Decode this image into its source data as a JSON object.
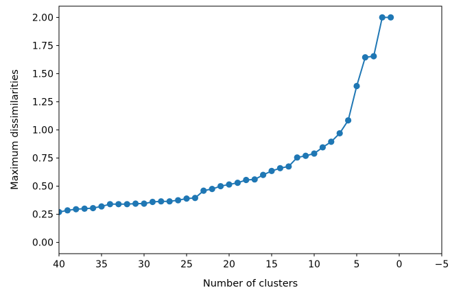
{
  "chart_data": {
    "type": "line",
    "title": "",
    "xlabel": "Number of clusters",
    "ylabel": "Maximum dissimilarities",
    "xlim": [
      40,
      -5
    ],
    "ylim": [
      -0.1,
      2.1
    ],
    "xticks": [
      40,
      35,
      30,
      25,
      20,
      15,
      10,
      5,
      0,
      -5
    ],
    "xtick_labels": [
      "40",
      "35",
      "30",
      "25",
      "20",
      "15",
      "10",
      "5",
      "0",
      "−5"
    ],
    "yticks": [
      0.0,
      0.25,
      0.5,
      0.75,
      1.0,
      1.25,
      1.5,
      1.75,
      2.0
    ],
    "ytick_labels": [
      "0.00",
      "0.25",
      "0.50",
      "0.75",
      "1.00",
      "1.25",
      "1.50",
      "1.75",
      "2.00"
    ],
    "grid": false,
    "legend": false,
    "color": "#1f77b4",
    "marker": "circle",
    "x": [
      40,
      39,
      38,
      37,
      36,
      35,
      34,
      33,
      32,
      31,
      30,
      29,
      28,
      27,
      26,
      25,
      24,
      23,
      22,
      21,
      20,
      19,
      18,
      17,
      16,
      15,
      14,
      13,
      12,
      11,
      10,
      9,
      8,
      7,
      6,
      5,
      4,
      3,
      2,
      1
    ],
    "y": [
      0.27,
      0.285,
      0.295,
      0.3,
      0.305,
      0.32,
      0.34,
      0.34,
      0.34,
      0.345,
      0.345,
      0.36,
      0.365,
      0.365,
      0.375,
      0.39,
      0.395,
      0.46,
      0.475,
      0.5,
      0.515,
      0.53,
      0.555,
      0.56,
      0.6,
      0.635,
      0.66,
      0.675,
      0.755,
      0.77,
      0.79,
      0.845,
      0.895,
      0.97,
      1.085,
      1.39,
      1.645,
      1.655,
      2.0,
      2.0
    ]
  }
}
